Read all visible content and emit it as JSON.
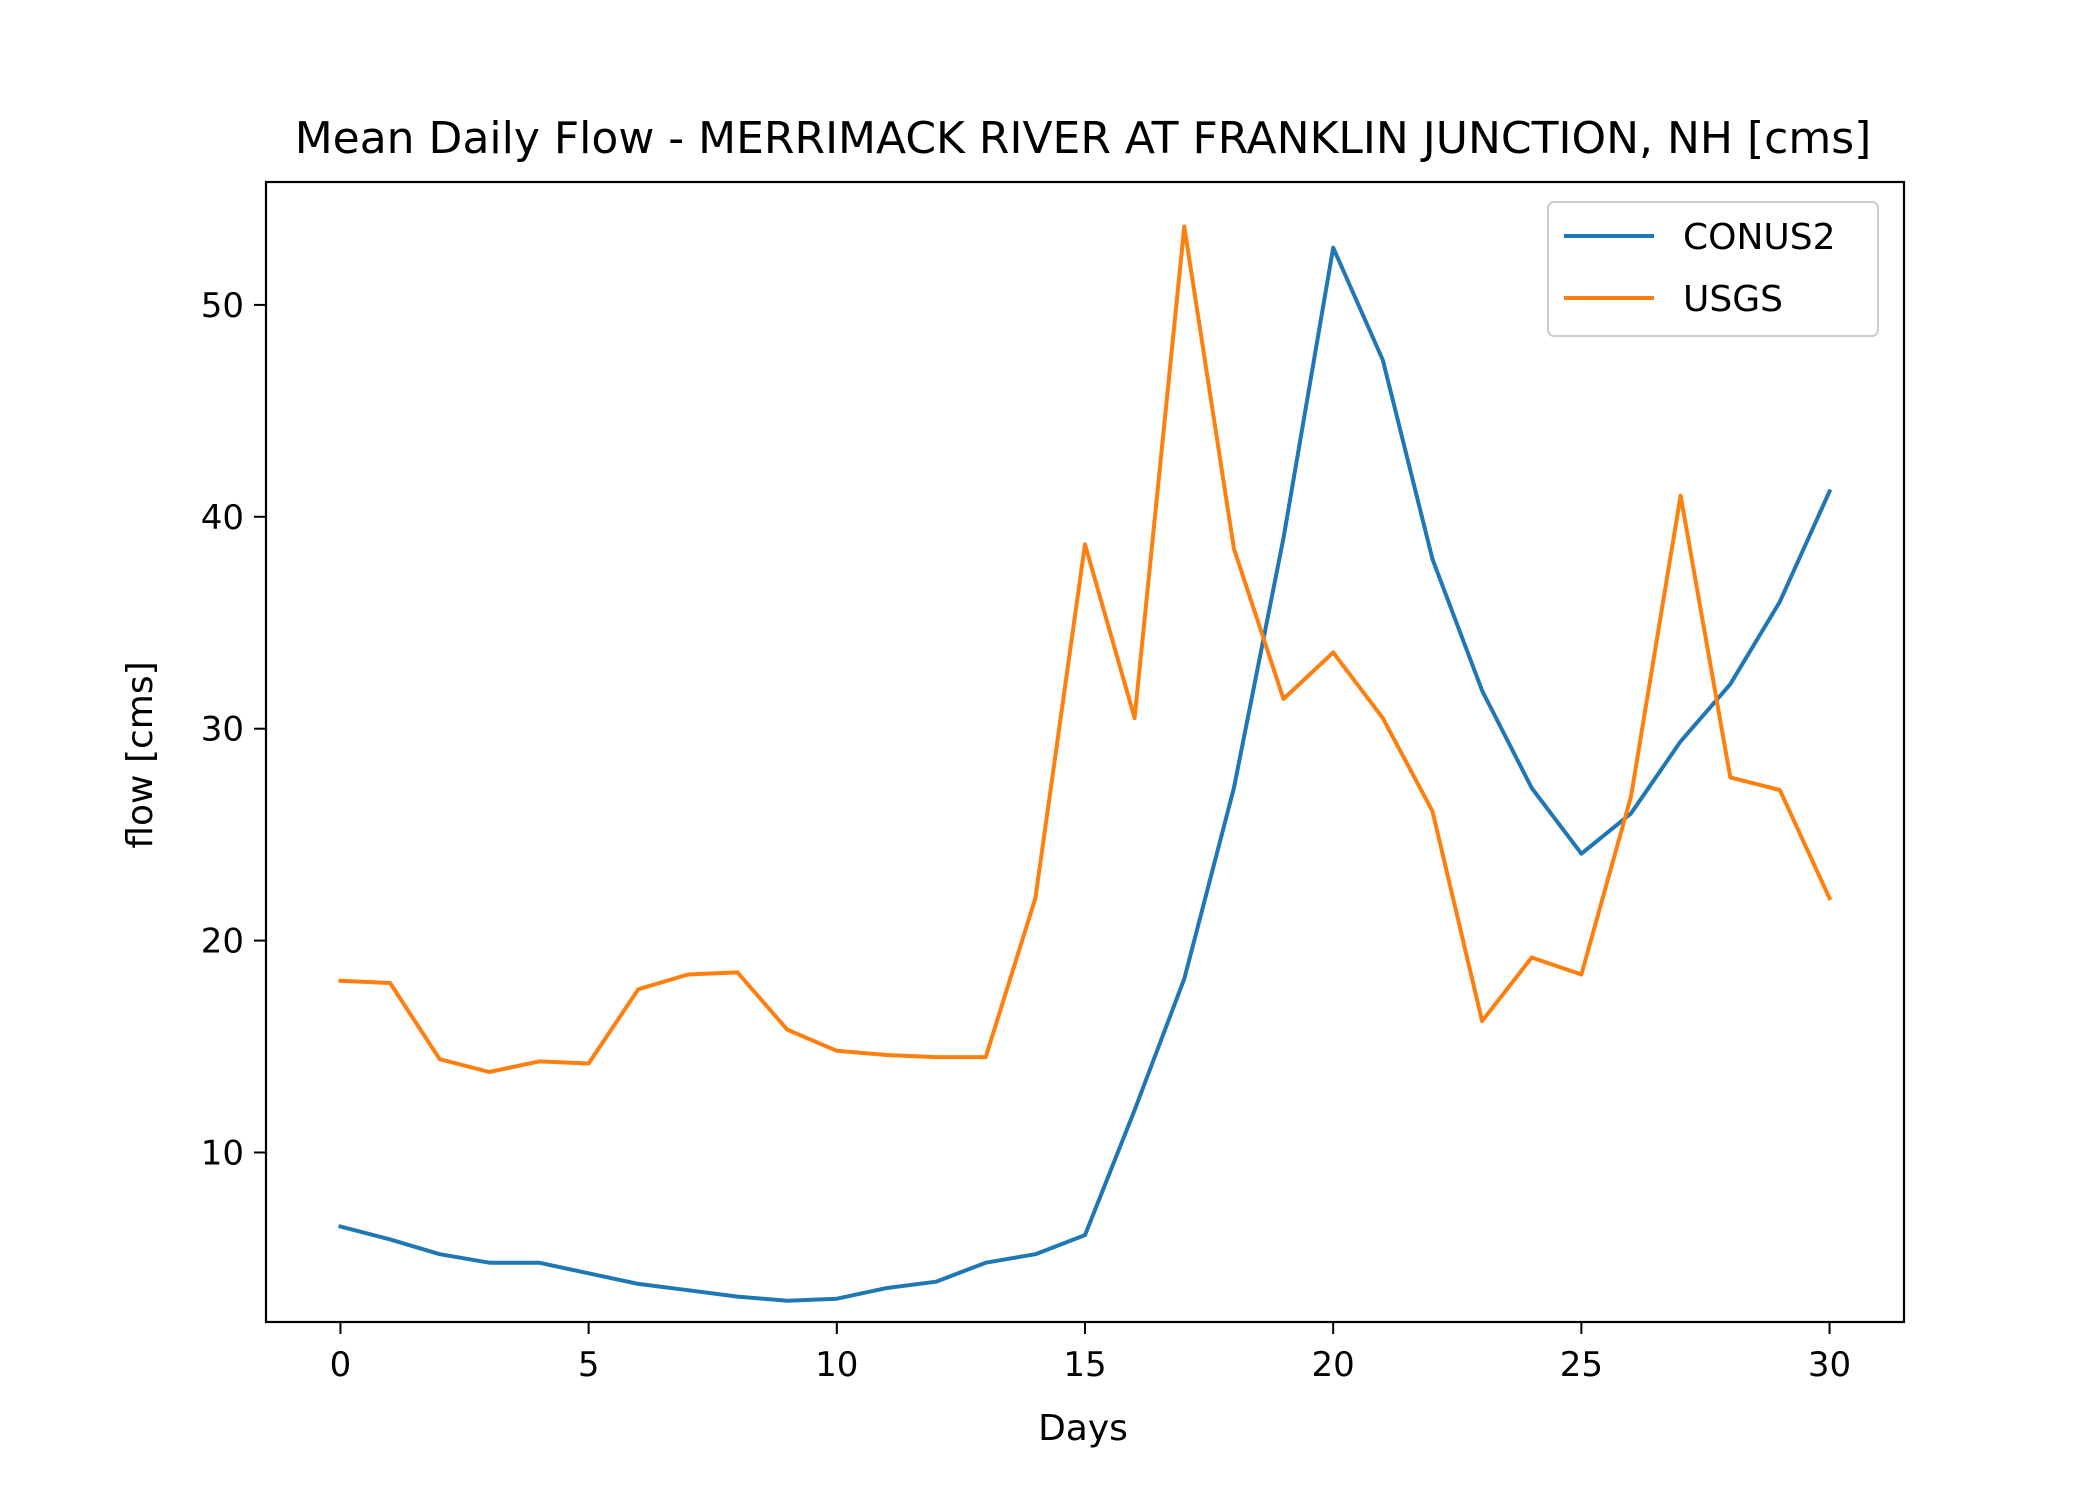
{
  "chart_data": {
    "type": "line",
    "title": "Mean Daily Flow - MERRIMACK RIVER AT FRANKLIN JUNCTION, NH [cms]",
    "xlabel": "Days",
    "ylabel": "flow [cms]",
    "xlim": [
      -1.5,
      31.5
    ],
    "ylim": [
      2.0,
      55.8
    ],
    "xticks": [
      0,
      5,
      10,
      15,
      20,
      25,
      30
    ],
    "yticks": [
      10,
      20,
      30,
      40,
      50
    ],
    "grid": false,
    "legend_position": "top-right",
    "x": [
      0,
      1,
      2,
      3,
      4,
      5,
      6,
      7,
      8,
      9,
      10,
      11,
      12,
      13,
      14,
      15,
      16,
      17,
      18,
      19,
      20,
      21,
      22,
      23,
      24,
      25,
      26,
      27,
      28,
      29,
      30
    ],
    "series": [
      {
        "name": "CONUS2",
        "color": "#1f77b4",
        "values": [
          6.5,
          5.9,
          5.2,
          4.8,
          4.8,
          4.3,
          3.8,
          3.5,
          3.2,
          3.0,
          3.1,
          3.6,
          3.9,
          4.8,
          5.2,
          6.1,
          12.0,
          18.2,
          27.2,
          39.0,
          52.7,
          47.4,
          38.0,
          31.8,
          27.2,
          24.1,
          26.0,
          29.4,
          32.1,
          36.0,
          41.2
        ]
      },
      {
        "name": "USGS",
        "color": "#ff7f0e",
        "values": [
          18.1,
          18.0,
          14.4,
          13.8,
          14.3,
          14.2,
          17.7,
          18.4,
          18.5,
          15.8,
          14.8,
          14.6,
          14.5,
          14.5,
          22.0,
          38.7,
          30.5,
          53.7,
          38.5,
          31.4,
          33.6,
          30.5,
          26.1,
          16.2,
          19.2,
          18.4,
          26.8,
          41.0,
          27.7,
          27.1,
          22.0
        ]
      }
    ]
  }
}
